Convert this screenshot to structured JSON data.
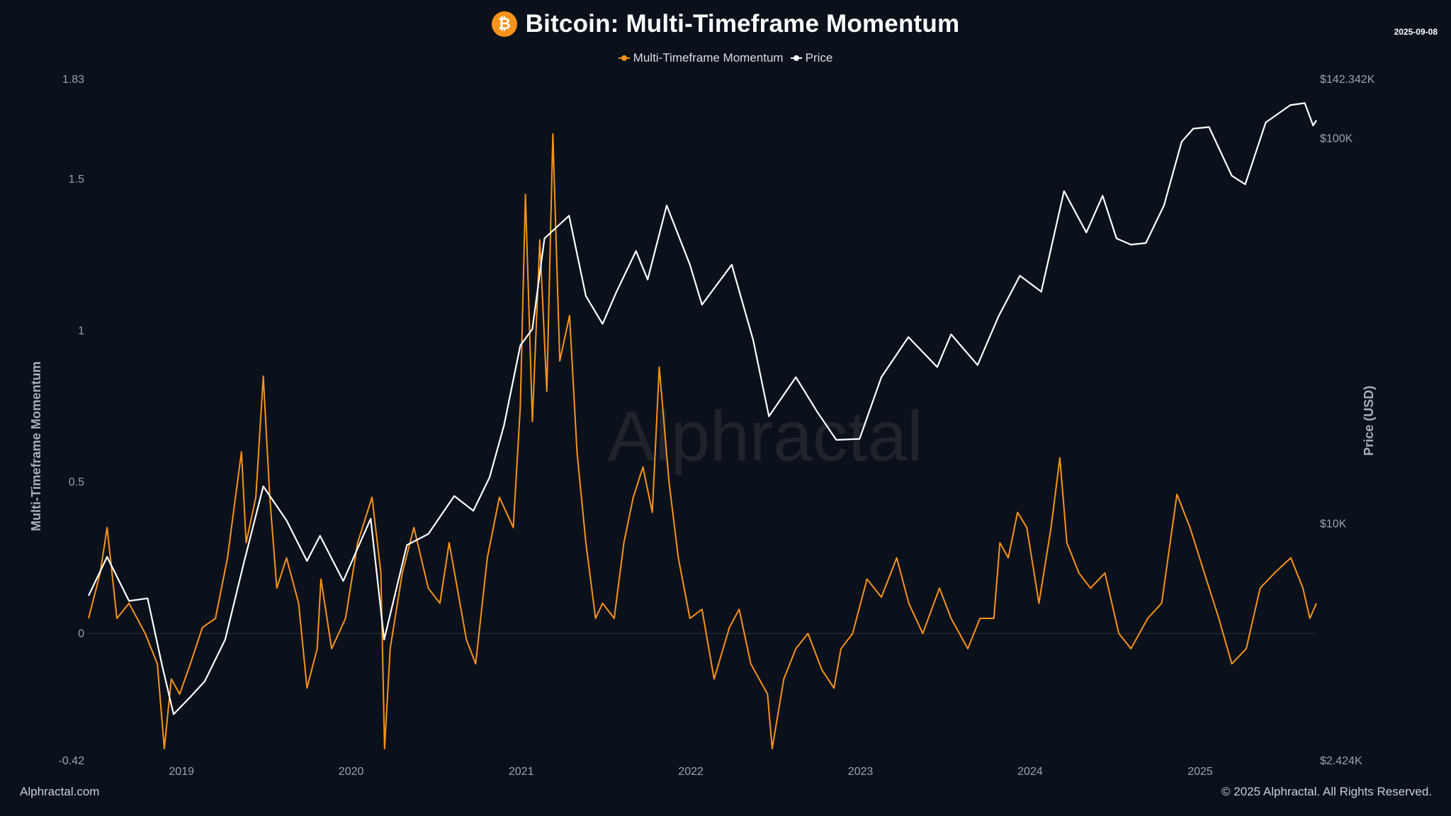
{
  "header": {
    "title": "Bitcoin: Multi-Timeframe Momentum",
    "date": "2025-09-08",
    "badge_symbol": "₿"
  },
  "legend": {
    "items": [
      {
        "label": "Multi-Timeframe Momentum",
        "color": "#f7931a"
      },
      {
        "label": "Price",
        "color": "#ffffff"
      }
    ]
  },
  "footer": {
    "left": "Alphractal.com",
    "right": "© 2025 Alphractal. All Rights Reserved."
  },
  "watermark": {
    "text": "Alphractal"
  },
  "colors": {
    "background": "#0b111b",
    "momentum": "#f7931a",
    "price": "#ffffff",
    "badge": "#f7931a"
  },
  "chart_data": {
    "type": "line",
    "xlabel": "",
    "x_tick_labels": [
      "2019",
      "2020",
      "2021",
      "2022",
      "2023",
      "2024",
      "2025"
    ],
    "x_range": [
      "2018-06-15",
      "2025-09-08"
    ],
    "y_left": {
      "label": "Multi-Timeframe Momentum",
      "range": [
        -0.42,
        1.83
      ],
      "tick_labels": [
        "1.83",
        "1.5",
        "1",
        "0.5",
        "0",
        "-0.42"
      ],
      "ticks": [
        1.83,
        1.5,
        1,
        0.5,
        0,
        -0.42
      ]
    },
    "y_right": {
      "label": "Price (USD)",
      "scale": "log",
      "range": [
        2424,
        142342
      ],
      "tick_labels": [
        "$142.342K",
        "$100K",
        "$10K",
        "$2.424K"
      ],
      "ticks": [
        142342,
        100000,
        10000,
        2424
      ]
    },
    "zero_line": true,
    "grid": false,
    "legend_position": "top-center",
    "series": [
      {
        "name": "Multi-Timeframe Momentum",
        "axis": "left",
        "color": "#f7931a",
        "points": [
          [
            "2018-06-15",
            0.05
          ],
          [
            "2018-07-10",
            0.2
          ],
          [
            "2018-07-25",
            0.35
          ],
          [
            "2018-08-15",
            0.05
          ],
          [
            "2018-09-10",
            0.1
          ],
          [
            "2018-10-15",
            0.0
          ],
          [
            "2018-11-10",
            -0.1
          ],
          [
            "2018-11-25",
            -0.38
          ],
          [
            "2018-12-10",
            -0.15
          ],
          [
            "2018-12-28",
            -0.2
          ],
          [
            "2019-01-20",
            -0.1
          ],
          [
            "2019-02-15",
            0.02
          ],
          [
            "2019-03-15",
            0.05
          ],
          [
            "2019-04-10",
            0.25
          ],
          [
            "2019-05-10",
            0.6
          ],
          [
            "2019-05-20",
            0.3
          ],
          [
            "2019-06-10",
            0.45
          ],
          [
            "2019-06-26",
            0.85
          ],
          [
            "2019-07-10",
            0.45
          ],
          [
            "2019-07-25",
            0.15
          ],
          [
            "2019-08-15",
            0.25
          ],
          [
            "2019-09-10",
            0.1
          ],
          [
            "2019-09-28",
            -0.18
          ],
          [
            "2019-10-20",
            -0.05
          ],
          [
            "2019-10-28",
            0.18
          ],
          [
            "2019-11-20",
            -0.05
          ],
          [
            "2019-12-20",
            0.05
          ],
          [
            "2020-01-15",
            0.3
          ],
          [
            "2020-02-15",
            0.45
          ],
          [
            "2020-03-05",
            0.2
          ],
          [
            "2020-03-13",
            -0.38
          ],
          [
            "2020-03-25",
            -0.05
          ],
          [
            "2020-04-20",
            0.2
          ],
          [
            "2020-05-15",
            0.35
          ],
          [
            "2020-06-15",
            0.15
          ],
          [
            "2020-07-10",
            0.1
          ],
          [
            "2020-07-30",
            0.3
          ],
          [
            "2020-09-05",
            -0.02
          ],
          [
            "2020-09-25",
            -0.1
          ],
          [
            "2020-10-20",
            0.25
          ],
          [
            "2020-11-15",
            0.45
          ],
          [
            "2020-12-15",
            0.35
          ],
          [
            "2020-12-30",
            0.75
          ],
          [
            "2021-01-10",
            1.45
          ],
          [
            "2021-01-25",
            0.7
          ],
          [
            "2021-02-10",
            1.3
          ],
          [
            "2021-02-25",
            0.8
          ],
          [
            "2021-03-10",
            1.65
          ],
          [
            "2021-03-25",
            0.9
          ],
          [
            "2021-04-15",
            1.05
          ],
          [
            "2021-05-01",
            0.6
          ],
          [
            "2021-05-20",
            0.3
          ],
          [
            "2021-06-10",
            0.05
          ],
          [
            "2021-06-25",
            0.1
          ],
          [
            "2021-07-20",
            0.05
          ],
          [
            "2021-08-10",
            0.3
          ],
          [
            "2021-08-30",
            0.45
          ],
          [
            "2021-09-20",
            0.55
          ],
          [
            "2021-10-10",
            0.4
          ],
          [
            "2021-10-25",
            0.88
          ],
          [
            "2021-11-15",
            0.5
          ],
          [
            "2021-12-05",
            0.25
          ],
          [
            "2021-12-30",
            0.05
          ],
          [
            "2022-01-25",
            0.08
          ],
          [
            "2022-02-20",
            -0.15
          ],
          [
            "2022-03-25",
            0.02
          ],
          [
            "2022-04-15",
            0.08
          ],
          [
            "2022-05-10",
            -0.1
          ],
          [
            "2022-06-15",
            -0.2
          ],
          [
            "2022-06-25",
            -0.38
          ],
          [
            "2022-07-20",
            -0.15
          ],
          [
            "2022-08-15",
            -0.05
          ],
          [
            "2022-09-10",
            0.0
          ],
          [
            "2022-10-10",
            -0.12
          ],
          [
            "2022-11-05",
            -0.18
          ],
          [
            "2022-11-20",
            -0.05
          ],
          [
            "2022-12-15",
            0.0
          ],
          [
            "2023-01-15",
            0.18
          ],
          [
            "2023-02-15",
            0.12
          ],
          [
            "2023-03-20",
            0.25
          ],
          [
            "2023-04-15",
            0.1
          ],
          [
            "2023-05-15",
            0.0
          ],
          [
            "2023-06-20",
            0.15
          ],
          [
            "2023-07-15",
            0.05
          ],
          [
            "2023-08-20",
            -0.05
          ],
          [
            "2023-09-15",
            0.05
          ],
          [
            "2023-10-15",
            0.05
          ],
          [
            "2023-10-28",
            0.3
          ],
          [
            "2023-11-15",
            0.25
          ],
          [
            "2023-12-05",
            0.4
          ],
          [
            "2023-12-25",
            0.35
          ],
          [
            "2024-01-20",
            0.1
          ],
          [
            "2024-02-15",
            0.35
          ],
          [
            "2024-03-05",
            0.58
          ],
          [
            "2024-03-20",
            0.3
          ],
          [
            "2024-04-15",
            0.2
          ],
          [
            "2024-05-10",
            0.15
          ],
          [
            "2024-06-10",
            0.2
          ],
          [
            "2024-07-10",
            0.0
          ],
          [
            "2024-08-05",
            -0.05
          ],
          [
            "2024-09-10",
            0.05
          ],
          [
            "2024-10-10",
            0.1
          ],
          [
            "2024-11-12",
            0.46
          ],
          [
            "2024-12-10",
            0.35
          ],
          [
            "2025-01-10",
            0.2
          ],
          [
            "2025-02-10",
            0.05
          ],
          [
            "2025-03-10",
            -0.1
          ],
          [
            "2025-04-10",
            -0.05
          ],
          [
            "2025-05-10",
            0.15
          ],
          [
            "2025-06-10",
            0.2
          ],
          [
            "2025-07-15",
            0.25
          ],
          [
            "2025-08-10",
            0.15
          ],
          [
            "2025-08-25",
            0.05
          ],
          [
            "2025-09-08",
            0.1
          ]
        ]
      },
      {
        "name": "Price",
        "axis": "right",
        "color": "#ffffff",
        "points": [
          [
            "2018-06-15",
            6500
          ],
          [
            "2018-07-25",
            8200
          ],
          [
            "2018-09-10",
            6300
          ],
          [
            "2018-10-20",
            6400
          ],
          [
            "2018-11-20",
            4300
          ],
          [
            "2018-12-15",
            3200
          ],
          [
            "2019-01-20",
            3550
          ],
          [
            "2019-02-20",
            3900
          ],
          [
            "2019-04-05",
            5000
          ],
          [
            "2019-05-15",
            7900
          ],
          [
            "2019-06-26",
            12500
          ],
          [
            "2019-08-15",
            10200
          ],
          [
            "2019-09-28",
            8000
          ],
          [
            "2019-10-26",
            9300
          ],
          [
            "2019-12-15",
            7100
          ],
          [
            "2020-02-12",
            10300
          ],
          [
            "2020-03-12",
            5000
          ],
          [
            "2020-04-30",
            8800
          ],
          [
            "2020-06-15",
            9400
          ],
          [
            "2020-08-10",
            11800
          ],
          [
            "2020-09-20",
            10800
          ],
          [
            "2020-10-25",
            13200
          ],
          [
            "2020-11-25",
            18000
          ],
          [
            "2020-12-30",
            29000
          ],
          [
            "2021-01-25",
            32000
          ],
          [
            "2021-02-20",
            55000
          ],
          [
            "2021-04-14",
            63000
          ],
          [
            "2021-05-20",
            39000
          ],
          [
            "2021-06-25",
            33000
          ],
          [
            "2021-07-25",
            40000
          ],
          [
            "2021-09-05",
            51000
          ],
          [
            "2021-09-30",
            43000
          ],
          [
            "2021-11-10",
            67000
          ],
          [
            "2021-12-30",
            47000
          ],
          [
            "2022-01-25",
            37000
          ],
          [
            "2022-03-30",
            47000
          ],
          [
            "2022-05-15",
            30000
          ],
          [
            "2022-06-18",
            19000
          ],
          [
            "2022-08-15",
            24000
          ],
          [
            "2022-09-30",
            19500
          ],
          [
            "2022-11-10",
            16500
          ],
          [
            "2022-12-30",
            16600
          ],
          [
            "2023-02-15",
            24000
          ],
          [
            "2023-04-14",
            30500
          ],
          [
            "2023-06-15",
            25500
          ],
          [
            "2023-07-15",
            31000
          ],
          [
            "2023-09-10",
            25800
          ],
          [
            "2023-10-25",
            34500
          ],
          [
            "2023-12-10",
            44000
          ],
          [
            "2024-01-25",
            40000
          ],
          [
            "2024-03-14",
            73000
          ],
          [
            "2024-05-01",
            57000
          ],
          [
            "2024-06-05",
            71000
          ],
          [
            "2024-07-05",
            55000
          ],
          [
            "2024-08-05",
            53000
          ],
          [
            "2024-09-06",
            53500
          ],
          [
            "2024-10-15",
            67000
          ],
          [
            "2024-11-22",
            98000
          ],
          [
            "2024-12-17",
            106000
          ],
          [
            "2025-01-20",
            107000
          ],
          [
            "2025-03-10",
            80000
          ],
          [
            "2025-04-08",
            76000
          ],
          [
            "2025-05-22",
            110000
          ],
          [
            "2025-07-14",
            122000
          ],
          [
            "2025-08-14",
            123500
          ],
          [
            "2025-09-01",
            108000
          ],
          [
            "2025-09-08",
            111500
          ]
        ]
      }
    ]
  }
}
